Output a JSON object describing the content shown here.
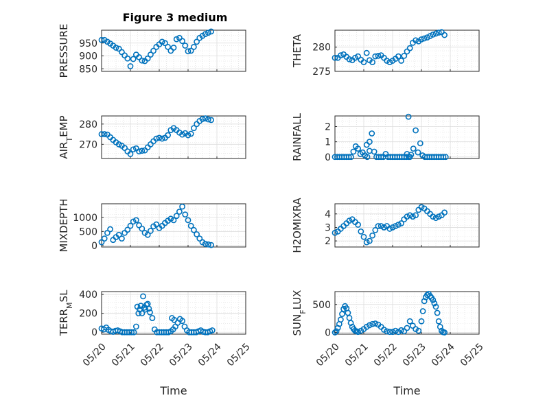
{
  "figure": {
    "title": "Figure 3 medium",
    "marker_color": "#0072BD",
    "grid": true,
    "x_axis_label": "Time",
    "x_ticks": [
      "05/20",
      "05/21",
      "05/22",
      "05/23",
      "05/24",
      "05/25"
    ]
  },
  "chart_data": [
    {
      "type": "scatter",
      "panel": "PRESSURE",
      "ylabel": "PRESSURE",
      "ylabel_sub": "",
      "ylabel_tail": "",
      "title": "Figure 3 medium",
      "xlabel": "",
      "xlim": [
        0,
        5
      ],
      "ylim": [
        840,
        1000
      ],
      "yticks": [
        850,
        900,
        950
      ],
      "x": [
        0.0,
        0.1,
        0.2,
        0.3,
        0.4,
        0.5,
        0.6,
        0.7,
        0.8,
        0.9,
        1.0,
        1.1,
        1.2,
        1.3,
        1.4,
        1.5,
        1.6,
        1.7,
        1.8,
        1.9,
        2.0,
        2.1,
        2.2,
        2.3,
        2.4,
        2.5,
        2.6,
        2.7,
        2.8,
        2.9,
        3.0,
        3.1,
        3.2,
        3.3,
        3.4,
        3.5,
        3.6,
        3.7,
        3.8
      ],
      "y": [
        962,
        962,
        955,
        948,
        940,
        932,
        928,
        915,
        902,
        890,
        860,
        888,
        905,
        895,
        882,
        880,
        890,
        905,
        920,
        935,
        945,
        955,
        950,
        935,
        920,
        932,
        965,
        970,
        958,
        940,
        918,
        920,
        935,
        955,
        970,
        978,
        985,
        990,
        995
      ]
    },
    {
      "type": "scatter",
      "panel": "THETA",
      "ylabel": "THETA",
      "ylabel_sub": "",
      "ylabel_tail": "",
      "xlabel": "",
      "xlim": [
        0,
        5
      ],
      "ylim": [
        275,
        283.5
      ],
      "yticks": [
        275,
        280
      ],
      "x": [
        0.0,
        0.1,
        0.2,
        0.3,
        0.4,
        0.5,
        0.6,
        0.7,
        0.8,
        0.9,
        1.0,
        1.1,
        1.2,
        1.3,
        1.4,
        1.5,
        1.6,
        1.7,
        1.8,
        1.9,
        2.0,
        2.1,
        2.2,
        2.3,
        2.4,
        2.5,
        2.6,
        2.7,
        2.8,
        2.9,
        3.0,
        3.1,
        3.2,
        3.3,
        3.4,
        3.5,
        3.6,
        3.7,
        3.8
      ],
      "y": [
        277.8,
        277.8,
        278.3,
        278.5,
        278.0,
        277.5,
        277.3,
        277.8,
        278.1,
        277.4,
        276.9,
        278.8,
        277.3,
        276.9,
        278.1,
        278.2,
        278.3,
        277.8,
        277.2,
        276.9,
        277.2,
        277.6,
        278.1,
        277.2,
        278.2,
        279.1,
        279.8,
        280.9,
        281.4,
        281.2,
        281.6,
        281.8,
        282.0,
        282.3,
        282.6,
        282.8,
        283.0,
        283.1,
        282.5
      ]
    },
    {
      "type": "scatter",
      "panel": "AIR_TEMP",
      "ylabel": "AIR",
      "ylabel_sub": "T",
      "ylabel_tail": "EMP",
      "xlabel": "",
      "xlim": [
        0,
        5
      ],
      "ylim": [
        263,
        284
      ],
      "yticks": [
        270,
        280
      ],
      "x": [
        0.0,
        0.1,
        0.2,
        0.3,
        0.4,
        0.5,
        0.6,
        0.7,
        0.8,
        0.9,
        1.0,
        1.1,
        1.2,
        1.3,
        1.4,
        1.5,
        1.6,
        1.7,
        1.8,
        1.9,
        2.0,
        2.1,
        2.2,
        2.3,
        2.4,
        2.5,
        2.6,
        2.7,
        2.8,
        2.9,
        3.0,
        3.1,
        3.2,
        3.3,
        3.4,
        3.5,
        3.6,
        3.7,
        3.8
      ],
      "y": [
        275.0,
        275.0,
        274.8,
        273.5,
        272.2,
        271.0,
        270.0,
        269.3,
        268.2,
        266.5,
        265.2,
        267.5,
        268.0,
        266.5,
        266.8,
        267.0,
        268.5,
        270.0,
        271.5,
        272.8,
        273.2,
        272.8,
        273.2,
        274.5,
        277.0,
        278.0,
        277.0,
        275.8,
        274.8,
        275.5,
        274.5,
        275.2,
        278.0,
        280.0,
        281.5,
        282.5,
        282.8,
        282.3,
        282.0
      ]
    },
    {
      "type": "scatter",
      "panel": "RAINFALL",
      "ylabel": "RAINFALL",
      "ylabel_sub": "",
      "ylabel_tail": "",
      "xlabel": "",
      "xlim": [
        0,
        5
      ],
      "ylim": [
        -0.1,
        2.7
      ],
      "yticks": [
        0,
        1,
        2
      ],
      "x": [
        0.0,
        0.08,
        0.16,
        0.24,
        0.32,
        0.4,
        0.48,
        0.56,
        0.64,
        0.72,
        0.8,
        0.88,
        0.96,
        1.04,
        1.12,
        1.2,
        1.28,
        1.36,
        1.44,
        1.52,
        1.6,
        1.68,
        1.76,
        1.84,
        1.92,
        2.0,
        2.08,
        2.16,
        2.24,
        2.32,
        2.4,
        2.48,
        2.56,
        2.64,
        2.72,
        2.8,
        2.88,
        2.96,
        3.04,
        3.12,
        3.2,
        3.28,
        3.36,
        3.44,
        3.52,
        3.6,
        3.68,
        3.76,
        3.84,
        1.1,
        1.2,
        2.5,
        2.55,
        2.6
      ],
      "y": [
        0,
        0,
        0,
        0,
        0,
        0,
        0,
        0,
        0.35,
        0.7,
        0.55,
        0.2,
        0.3,
        0.1,
        0,
        0.4,
        1.55,
        0.35,
        0,
        0,
        0,
        0,
        0.2,
        0,
        0,
        0,
        0,
        0,
        0,
        0,
        0,
        0,
        0,
        0.15,
        0.55,
        1.75,
        0.3,
        0.9,
        0.1,
        0,
        0,
        0,
        0,
        0,
        0,
        0,
        0,
        0,
        0,
        0.8,
        1.0,
        0.2,
        2.65,
        0
      ]
    },
    {
      "type": "scatter",
      "panel": "MIXDEPTH",
      "ylabel": "MIXDEPTH",
      "ylabel_sub": "",
      "ylabel_tail": "",
      "xlabel": "",
      "xlim": [
        0,
        5
      ],
      "ylim": [
        -50,
        1480
      ],
      "yticks": [
        0,
        500,
        1000
      ],
      "x": [
        0.0,
        0.1,
        0.2,
        0.3,
        0.4,
        0.5,
        0.6,
        0.7,
        0.8,
        0.9,
        1.0,
        1.1,
        1.2,
        1.3,
        1.4,
        1.5,
        1.6,
        1.7,
        1.8,
        1.9,
        2.0,
        2.1,
        2.2,
        2.3,
        2.4,
        2.5,
        2.6,
        2.7,
        2.8,
        2.9,
        3.0,
        3.1,
        3.2,
        3.3,
        3.4,
        3.5,
        3.6,
        3.7,
        3.8
      ],
      "y": [
        120,
        250,
        450,
        580,
        200,
        300,
        380,
        250,
        450,
        560,
        700,
        850,
        900,
        720,
        600,
        450,
        380,
        520,
        680,
        750,
        620,
        700,
        800,
        880,
        950,
        900,
        1050,
        1200,
        1380,
        1100,
        900,
        700,
        550,
        400,
        250,
        120,
        60,
        40,
        20
      ]
    },
    {
      "type": "scatter",
      "panel": "H2OMIXRA",
      "ylabel": "H2OMIXRA",
      "ylabel_sub": "",
      "ylabel_tail": "",
      "xlabel": "",
      "xlim": [
        0,
        5
      ],
      "ylim": [
        1.55,
        4.75
      ],
      "yticks": [
        2,
        3,
        4
      ],
      "x": [
        0.0,
        0.1,
        0.2,
        0.3,
        0.4,
        0.5,
        0.6,
        0.7,
        0.8,
        0.9,
        1.0,
        1.1,
        1.2,
        1.3,
        1.4,
        1.5,
        1.6,
        1.7,
        1.8,
        1.9,
        2.0,
        2.1,
        2.2,
        2.3,
        2.4,
        2.5,
        2.6,
        2.7,
        2.8,
        2.9,
        3.0,
        3.1,
        3.2,
        3.3,
        3.4,
        3.5,
        3.6,
        3.7,
        3.8
      ],
      "y": [
        2.6,
        2.7,
        2.9,
        3.1,
        3.3,
        3.5,
        3.6,
        3.4,
        3.2,
        2.7,
        2.3,
        1.9,
        2.0,
        2.4,
        2.8,
        3.1,
        3.1,
        3.0,
        3.1,
        2.9,
        3.0,
        3.1,
        3.2,
        3.3,
        3.6,
        3.8,
        3.9,
        3.8,
        3.9,
        4.3,
        4.5,
        4.4,
        4.2,
        4.0,
        3.8,
        3.7,
        3.8,
        3.9,
        4.1
      ]
    },
    {
      "type": "scatter",
      "panel": "TERR_MSL",
      "ylabel": "TERR",
      "ylabel_sub": "M",
      "ylabel_tail": "SL",
      "xlabel": "Time",
      "xlim": [
        0,
        5
      ],
      "ylim": [
        -20,
        430
      ],
      "yticks": [
        0,
        200,
        400
      ],
      "x": [
        0.0,
        0.08,
        0.16,
        0.24,
        0.32,
        0.4,
        0.48,
        0.56,
        0.64,
        0.72,
        0.8,
        0.88,
        0.96,
        1.04,
        1.12,
        1.2,
        1.28,
        1.36,
        1.44,
        1.52,
        1.6,
        1.68,
        1.76,
        1.84,
        1.92,
        2.0,
        2.08,
        2.16,
        2.24,
        2.32,
        2.4,
        2.48,
        2.56,
        2.64,
        2.72,
        2.8,
        2.88,
        2.96,
        3.04,
        3.12,
        3.2,
        3.28,
        3.36,
        3.44,
        3.52,
        3.6,
        3.68,
        3.76,
        3.84,
        1.24,
        1.32,
        1.4,
        1.48,
        1.56,
        1.64,
        2.44,
        2.52
      ],
      "y": [
        40,
        30,
        50,
        25,
        10,
        5,
        15,
        20,
        10,
        0,
        0,
        0,
        0,
        0,
        0,
        60,
        200,
        280,
        380,
        240,
        300,
        210,
        150,
        30,
        0,
        0,
        0,
        0,
        0,
        0,
        10,
        30,
        60,
        100,
        140,
        120,
        60,
        20,
        0,
        0,
        0,
        0,
        10,
        20,
        5,
        0,
        0,
        10,
        20,
        270,
        240,
        200,
        260,
        290,
        250,
        150,
        130
      ]
    },
    {
      "type": "scatter",
      "panel": "SUN_FLUX",
      "ylabel": "SUN",
      "ylabel_sub": "F",
      "ylabel_tail": "LUX",
      "xlabel": "Time",
      "xlim": [
        0,
        5
      ],
      "ylim": [
        -30,
        730
      ],
      "yticks": [
        0,
        500
      ],
      "x": [
        0.0,
        0.05,
        0.1,
        0.15,
        0.2,
        0.25,
        0.3,
        0.35,
        0.4,
        0.45,
        0.5,
        0.55,
        0.6,
        0.65,
        0.7,
        0.75,
        0.8,
        0.9,
        1.0,
        1.1,
        1.2,
        1.3,
        1.4,
        1.5,
        1.6,
        1.7,
        1.8,
        1.9,
        2.0,
        2.1,
        2.2,
        2.3,
        2.4,
        2.5,
        2.6,
        2.7,
        2.8,
        2.9,
        3.0,
        3.05,
        3.1,
        3.15,
        3.2,
        3.25,
        3.3,
        3.35,
        3.4,
        3.45,
        3.5,
        3.55,
        3.6,
        3.65,
        3.7,
        3.75,
        3.8
      ],
      "y": [
        0,
        20,
        80,
        150,
        230,
        330,
        420,
        470,
        430,
        350,
        260,
        170,
        100,
        60,
        30,
        20,
        10,
        30,
        60,
        100,
        130,
        150,
        160,
        140,
        100,
        50,
        20,
        10,
        10,
        30,
        10,
        40,
        20,
        80,
        200,
        120,
        60,
        30,
        200,
        380,
        560,
        630,
        670,
        690,
        650,
        620,
        580,
        520,
        460,
        350,
        200,
        100,
        30,
        5,
        0
      ]
    }
  ]
}
